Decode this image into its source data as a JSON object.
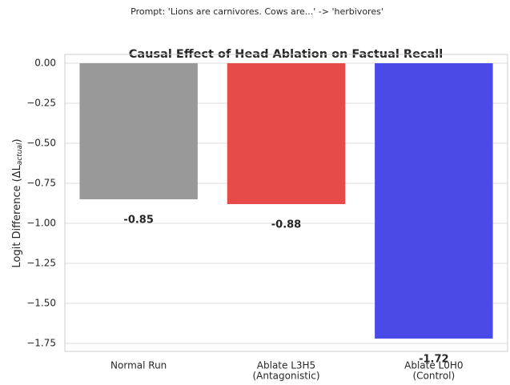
{
  "chart_data": {
    "type": "bar",
    "suptitle": "Prompt: 'Lions are carnivores. Cows are...' -> 'herbivores'",
    "title": "Causal Effect of Head Ablation on Factual Recall",
    "y_label": [
      "Logit Difference (ΔL",
      "actual",
      ")"
    ],
    "categories": [
      [
        "Normal Run"
      ],
      [
        "Ablate L3H5",
        "(Antagonistic)"
      ],
      [
        "Ablate L0H0",
        "(Control)"
      ]
    ],
    "values": [
      -0.85,
      -0.88,
      -1.72
    ],
    "value_labels": [
      "-0.85",
      "-0.88",
      "-1.72"
    ],
    "colors": [
      "#999999",
      "#e84a4a",
      "#4a4ae8"
    ],
    "ylim": [
      -1.8,
      0.055
    ],
    "yticks": [
      {
        "value": 0,
        "label": "0.00"
      },
      {
        "value": -0.25,
        "label": "−0.25"
      },
      {
        "value": -0.5,
        "label": "−0.50"
      },
      {
        "value": -0.75,
        "label": "−0.75"
      },
      {
        "value": -1,
        "label": "−1.00"
      },
      {
        "value": -1.25,
        "label": "−1.25"
      },
      {
        "value": -1.5,
        "label": "−1.50"
      },
      {
        "value": -1.75,
        "label": "−1.75"
      }
    ],
    "grid": true
  }
}
